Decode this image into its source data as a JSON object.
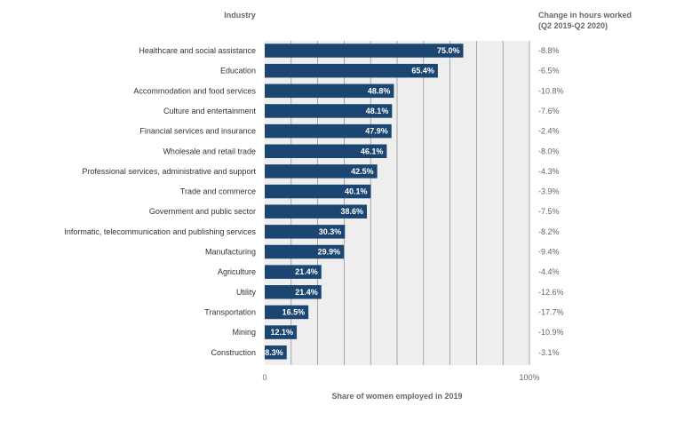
{
  "chart_data": {
    "type": "bar",
    "orientation": "horizontal",
    "title": "",
    "ylabel": "Industry",
    "xlabel": "Share of women employed in 2019",
    "right_header": [
      "Change in hours worked",
      "(Q2 2019-Q2 2020)"
    ],
    "xlim": [
      0,
      100
    ],
    "tick_labels": [
      "0",
      "100%"
    ],
    "grid": true,
    "categories": [
      "Healthcare and social assistance",
      "Education",
      "Accommodation and food services",
      "Culture and entertainment",
      "Financial services and insurance",
      "Wholesale and retail trade",
      "Professional services, administrative and support",
      "Trade and commerce",
      "Government and public sector",
      "Informatic, telecommunication and publishing services",
      "Manufacturing",
      "Agriculture",
      "Utility",
      "Transportation",
      "Mining",
      "Construction"
    ],
    "values": [
      75.0,
      65.4,
      48.8,
      48.1,
      47.9,
      46.1,
      42.5,
      40.1,
      38.6,
      30.3,
      29.9,
      21.4,
      21.4,
      16.5,
      12.1,
      8.3
    ],
    "value_labels": [
      "75.0%",
      "65.4%",
      "48.8%",
      "48.1%",
      "47.9%",
      "46.1%",
      "42.5%",
      "40.1%",
      "38.6%",
      "30.3%",
      "29.9%",
      "21.4%",
      "21.4%",
      "16.5%",
      "12.1%",
      "8.3%"
    ],
    "change_in_hours": [
      "-8.8%",
      "-6.5%",
      "-10.8%",
      "-7.6%",
      "-2.4%",
      "-8.0%",
      "-4.3%",
      "-3.9%",
      "-7.5%",
      "-8.2%",
      "-9.4%",
      "-4.4%",
      "-12.6%",
      "-17.7%",
      "-10.9%",
      "-3.1%"
    ]
  },
  "colors": {
    "bar": "#1b4672",
    "plot_bg": "#eeeeee",
    "grid": "#888888",
    "text": "#333333",
    "muted": "#666666",
    "bar_label": "#ffffff"
  }
}
